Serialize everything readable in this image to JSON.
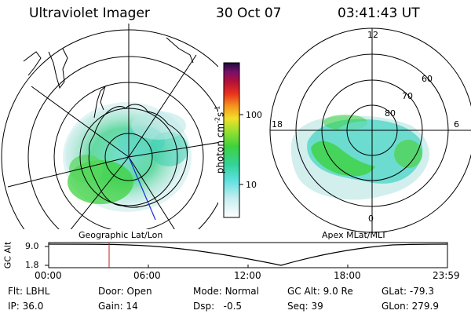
{
  "header": {
    "instrument": "Ultraviolet Imager",
    "date": "30 Oct 07",
    "time": "03:41:43 UT"
  },
  "left_map": {
    "label": "Geographic Lat/Lon"
  },
  "right_map": {
    "label": "Apex MLat/MLT",
    "mlt_labels": [
      "12",
      "18",
      "6",
      "0"
    ],
    "mlat_labels": [
      "60",
      "70",
      "80"
    ]
  },
  "colorbar": {
    "unit_label": "photon cm",
    "unit_sup1": "-2",
    "unit_mid": "s",
    "unit_sup2": "-1",
    "ticks": [
      "100",
      "10"
    ],
    "scale": "log"
  },
  "altitude_panel": {
    "ylabel": "GC Alt",
    "yticks": [
      "9.0",
      "1.8"
    ],
    "time_ticks": [
      "00:00",
      "06:00",
      "12:00",
      "18:00",
      "23:59"
    ],
    "current_time_marker_fraction": 0.153
  },
  "info": {
    "flt_key": "Flt:",
    "flt_val": "LBHL",
    "ip_key": "IP:",
    "ip_val": "36.0",
    "door_key": "Door:",
    "door_val": "Open",
    "gain_key": "Gain:",
    "gain_val": "14",
    "mode_key": "Mode:",
    "mode_val": "Normal",
    "dsp_key": "Dsp:",
    "dsp_val": "-0.5",
    "gcalt_key": "GC Alt:",
    "gcalt_val": "9.0 Re",
    "seq_key": "Seq:",
    "seq_val": "39",
    "glat_key": "GLat:",
    "glat_val": "-79.3",
    "glon_key": "GLon:",
    "glon_val": "279.9"
  },
  "colors": {
    "emission_high": "#3ad13a",
    "emission_mid": "#5ad6c4",
    "emission_low": "#b9e5e2",
    "marker_red": "#c81e1e",
    "meridian_blue": "#1c2bd6"
  }
}
